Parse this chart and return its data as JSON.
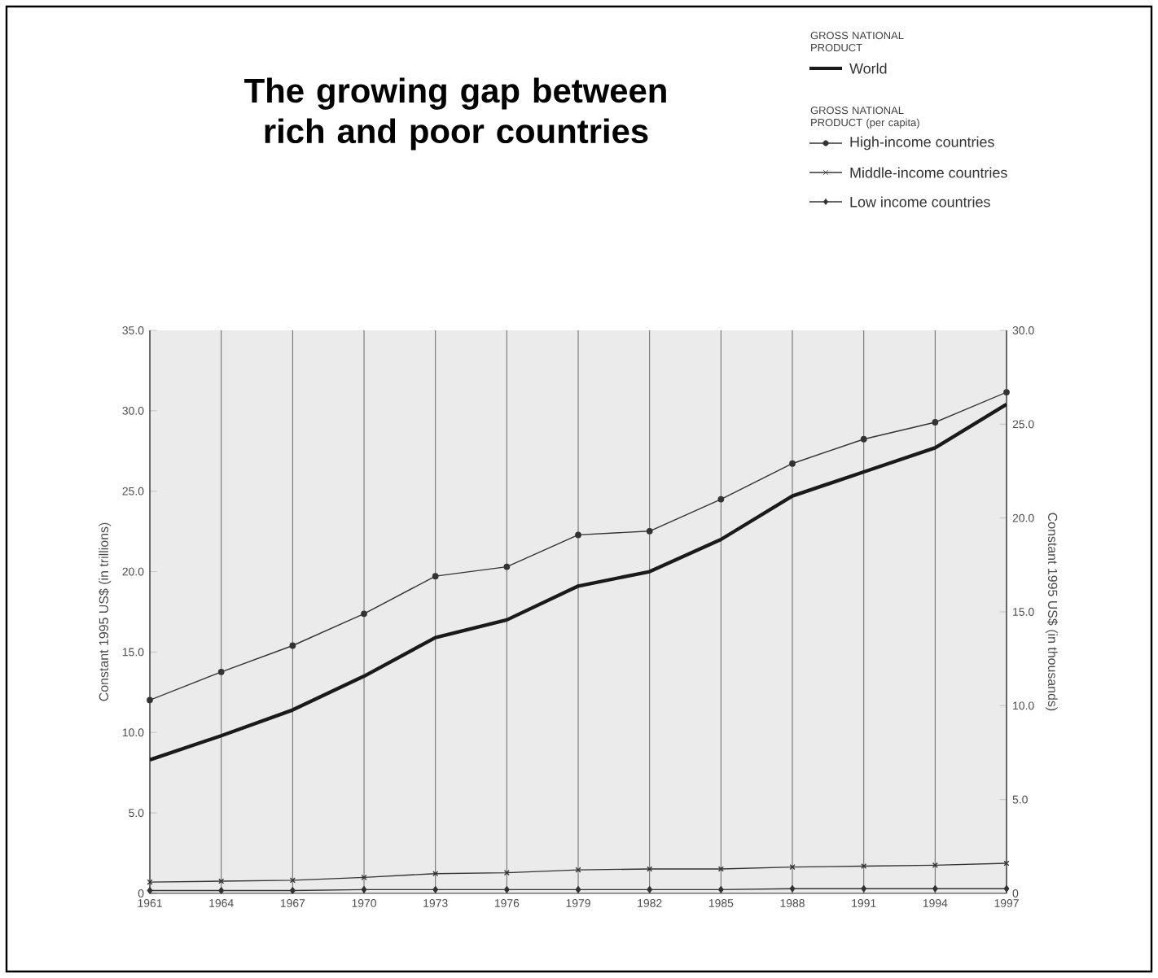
{
  "chart_data": {
    "type": "line",
    "title": "The growing gap between rich and poor countries",
    "categories": [
      "1961",
      "1964",
      "1967",
      "1970",
      "1973",
      "1976",
      "1979",
      "1982",
      "1985",
      "1988",
      "1991",
      "1994",
      "1997"
    ],
    "series": [
      {
        "name": "World",
        "color": "#1a1a1a",
        "marker": "none",
        "values": [
          8.3,
          9.8,
          11.4,
          13.5,
          15.9,
          17.0,
          19.1,
          20.0,
          22.0,
          24.7,
          26.2,
          27.7,
          30.4
        ]
      },
      {
        "name": "High-income countries",
        "color": "#333333",
        "marker": "circle",
        "axis": "y2",
        "values": [
          10.3,
          11.8,
          13.2,
          14.9,
          16.9,
          17.4,
          19.1,
          19.3,
          21.0,
          22.9,
          24.2,
          25.1,
          26.7
        ]
      },
      {
        "name": "Middle-income countries",
        "color": "#333333",
        "marker": "cross",
        "axis": "y2",
        "values": [
          0.6,
          0.65,
          0.7,
          0.85,
          1.05,
          1.1,
          1.25,
          1.3,
          1.3,
          1.4,
          1.45,
          1.5,
          1.6
        ]
      },
      {
        "name": "Low income countries",
        "color": "#333333",
        "marker": "diamond",
        "axis": "y2",
        "values": [
          0.15,
          0.15,
          0.15,
          0.2,
          0.2,
          0.2,
          0.2,
          0.2,
          0.2,
          0.25,
          0.25,
          0.25,
          0.25
        ]
      }
    ],
    "ylabel": "Constant 1995 US$ (in trillions)",
    "y2label": "Constant 1995 US$ (in thousands)",
    "ylim": [
      0,
      35
    ],
    "yticks": [
      0,
      {
        "value": 5,
        "label": "5.0"
      },
      {
        "value": 10,
        "label": "10.0"
      },
      {
        "value": 15,
        "label": "15.0"
      },
      {
        "value": 20,
        "label": "20.0"
      },
      {
        "value": 25,
        "label": "25.0"
      },
      {
        "value": 30,
        "label": "30.0"
      },
      {
        "value": 35,
        "label": "35.0"
      }
    ],
    "y2lim": [
      0,
      30
    ],
    "y2ticks": [
      0,
      {
        "value": 5,
        "label": "5.0"
      },
      {
        "value": 10,
        "label": "10.0"
      },
      {
        "value": 15,
        "label": "15.0"
      },
      {
        "value": 20,
        "label": "20.0"
      },
      {
        "value": 25,
        "label": "25.0"
      },
      {
        "value": 30,
        "label": "30.0"
      }
    ],
    "annotations": [
      "GROSS NATIONAL PRODUCT",
      "GROSS NATIONAL PRODUCT (per capita)"
    ],
    "grid": "x",
    "legend": "top right"
  }
}
